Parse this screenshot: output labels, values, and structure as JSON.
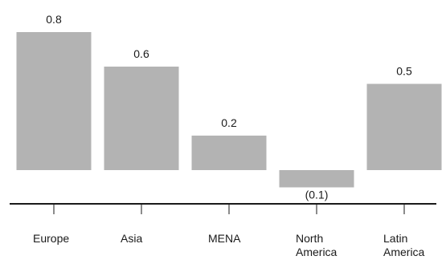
{
  "chart_data": {
    "type": "bar",
    "categories": [
      [
        "Europe"
      ],
      [
        "Asia"
      ],
      [
        "MENA"
      ],
      [
        "North",
        "America"
      ],
      [
        "Latin",
        "America"
      ]
    ],
    "values": [
      0.8,
      0.6,
      0.2,
      -0.1,
      0.5
    ],
    "data_labels": [
      "0.8",
      "0.6",
      "0.2",
      "(0.1)",
      "0.5"
    ],
    "title": "",
    "xlabel": "",
    "ylabel": "",
    "ylim": [
      -0.1,
      0.8
    ],
    "grid": false,
    "legend": "none",
    "bar_color": "#b3b3b3",
    "axis_color": "#1a1a1a"
  }
}
